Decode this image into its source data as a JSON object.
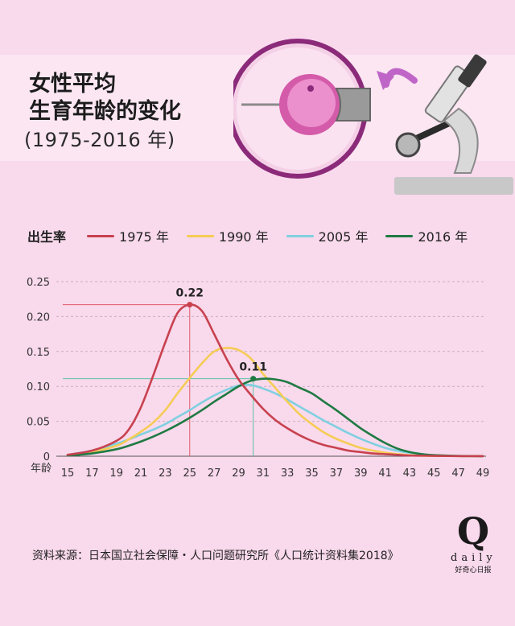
{
  "title_line1": "女性平均",
  "title_line2": "生育年龄的变化",
  "subtitle": "(1975-2016 年)",
  "legend": {
    "label": "出生率",
    "items": [
      {
        "name": "1975 年",
        "color": "#c8414f"
      },
      {
        "name": "1990 年",
        "color": "#f5cc55"
      },
      {
        "name": "2005 年",
        "color": "#7fd0e0"
      },
      {
        "name": "2016 年",
        "color": "#1f7a43"
      }
    ]
  },
  "source": "资料来源：日本国立社会保障・人口问题研究所《人口统计资料集2018》",
  "logo": {
    "letter": "Q",
    "word": "daily",
    "cn": "好奇心日报"
  },
  "chart_data": {
    "type": "line",
    "ylim": [
      0,
      0.25
    ],
    "xlim": [
      15,
      49
    ],
    "yticks": [
      "0",
      "0.05",
      "0.10",
      "0.15",
      "0.20",
      "0.25"
    ],
    "xticks": [
      "15",
      "17",
      "19",
      "21",
      "23",
      "25",
      "27",
      "29",
      "31",
      "33",
      "35",
      "37",
      "39",
      "41",
      "43",
      "45",
      "47",
      "49"
    ],
    "xlabel": "年龄",
    "grid": true,
    "annotations": [
      {
        "label": "0.22",
        "x": 25,
        "y": 0.217,
        "color": "#c8414f",
        "guide_color": "#e05a6a"
      },
      {
        "label": "0.11",
        "x": 30.2,
        "y": 0.111,
        "color": "#1f7a43",
        "guide_color": "#5cc2a0"
      }
    ],
    "series": [
      {
        "name": "1975 年",
        "color": "#c8414f",
        "x": [
          15,
          17,
          19,
          20,
          21,
          22,
          23,
          24,
          25,
          26,
          27,
          28,
          29,
          30,
          31,
          32,
          33,
          34,
          35,
          36,
          37,
          38,
          39,
          40,
          41,
          42,
          43,
          44,
          45,
          47,
          49
        ],
        "values": [
          0.002,
          0.008,
          0.022,
          0.038,
          0.07,
          0.115,
          0.163,
          0.205,
          0.217,
          0.208,
          0.175,
          0.14,
          0.11,
          0.088,
          0.068,
          0.052,
          0.04,
          0.03,
          0.022,
          0.016,
          0.012,
          0.008,
          0.006,
          0.004,
          0.003,
          0.002,
          0.001,
          0.0008,
          0.0005,
          0.0002,
          0.0001
        ]
      },
      {
        "name": "1990 年",
        "color": "#f5cc55",
        "x": [
          15,
          17,
          19,
          20,
          21,
          22,
          23,
          24,
          25,
          26,
          27,
          28,
          29,
          30,
          31,
          32,
          33,
          34,
          35,
          36,
          37,
          38,
          39,
          40,
          41,
          42,
          43,
          44,
          45,
          47,
          49
        ],
        "values": [
          0.002,
          0.006,
          0.015,
          0.024,
          0.035,
          0.048,
          0.066,
          0.09,
          0.112,
          0.133,
          0.15,
          0.155,
          0.152,
          0.14,
          0.118,
          0.098,
          0.078,
          0.06,
          0.046,
          0.034,
          0.025,
          0.018,
          0.012,
          0.008,
          0.005,
          0.003,
          0.0015,
          0.0008,
          0.0005,
          0.0002,
          0.0001
        ]
      },
      {
        "name": "2005 年",
        "color": "#7fd0e0",
        "x": [
          15,
          17,
          19,
          20,
          21,
          22,
          23,
          24,
          25,
          26,
          27,
          28,
          29,
          30,
          31,
          32,
          33,
          34,
          35,
          36,
          37,
          38,
          39,
          40,
          41,
          42,
          43,
          44,
          45,
          47,
          49
        ],
        "values": [
          0.002,
          0.008,
          0.018,
          0.024,
          0.031,
          0.038,
          0.046,
          0.056,
          0.066,
          0.077,
          0.087,
          0.095,
          0.101,
          0.102,
          0.097,
          0.09,
          0.081,
          0.071,
          0.061,
          0.051,
          0.042,
          0.033,
          0.025,
          0.018,
          0.012,
          0.008,
          0.005,
          0.003,
          0.0015,
          0.0005,
          0.0001
        ]
      },
      {
        "name": "2016 年",
        "color": "#1f7a43",
        "x": [
          15,
          17,
          19,
          20,
          21,
          22,
          23,
          24,
          25,
          26,
          27,
          28,
          29,
          30,
          31,
          32,
          33,
          34,
          35,
          36,
          37,
          38,
          39,
          40,
          41,
          42,
          43,
          44,
          45,
          47,
          49
        ],
        "values": [
          0.001,
          0.004,
          0.01,
          0.015,
          0.021,
          0.028,
          0.036,
          0.045,
          0.055,
          0.066,
          0.078,
          0.089,
          0.1,
          0.108,
          0.111,
          0.11,
          0.106,
          0.098,
          0.09,
          0.078,
          0.066,
          0.053,
          0.04,
          0.029,
          0.019,
          0.011,
          0.006,
          0.003,
          0.0015,
          0.0004,
          0.0001
        ]
      }
    ]
  }
}
